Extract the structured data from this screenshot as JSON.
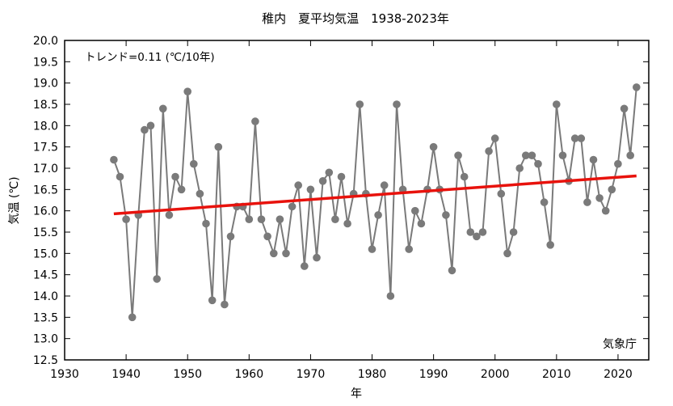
{
  "chart_data": {
    "type": "line",
    "title": "稚内　夏平均気温　1938-2023年",
    "xlabel": "年",
    "ylabel": "気温 (℃)",
    "trend_label": "トレンド=0.11 (℃/10年)",
    "credit": "気象庁",
    "xlim": [
      1930,
      2025
    ],
    "ylim": [
      12.5,
      20.0
    ],
    "grid": false,
    "xticks": [
      1930,
      1940,
      1950,
      1960,
      1970,
      1980,
      1990,
      2000,
      2010,
      2020
    ],
    "yticks": [
      "12.5",
      "13.0",
      "13.5",
      "14.0",
      "14.5",
      "15.0",
      "15.5",
      "16.0",
      "16.5",
      "17.0",
      "17.5",
      "18.0",
      "18.5",
      "19.0",
      "19.5",
      "20.0"
    ],
    "x": [
      1938,
      1939,
      1940,
      1941,
      1942,
      1943,
      1944,
      1945,
      1946,
      1947,
      1948,
      1949,
      1950,
      1951,
      1952,
      1953,
      1954,
      1955,
      1956,
      1957,
      1958,
      1959,
      1960,
      1961,
      1962,
      1963,
      1964,
      1965,
      1966,
      1967,
      1968,
      1969,
      1970,
      1971,
      1972,
      1973,
      1974,
      1975,
      1976,
      1977,
      1978,
      1979,
      1980,
      1981,
      1982,
      1983,
      1984,
      1985,
      1986,
      1987,
      1988,
      1989,
      1990,
      1991,
      1992,
      1993,
      1994,
      1995,
      1996,
      1997,
      1998,
      1999,
      2000,
      2001,
      2002,
      2003,
      2004,
      2005,
      2006,
      2007,
      2008,
      2009,
      2010,
      2011,
      2012,
      2013,
      2014,
      2015,
      2016,
      2017,
      2018,
      2019,
      2020,
      2021,
      2022,
      2023
    ],
    "series": [
      {
        "values": [
          17.2,
          16.8,
          15.8,
          13.5,
          15.9,
          17.9,
          18.0,
          14.4,
          18.4,
          15.9,
          16.8,
          16.5,
          18.8,
          17.1,
          16.4,
          15.7,
          13.9,
          17.5,
          13.8,
          15.4,
          16.1,
          16.1,
          15.8,
          18.1,
          15.8,
          15.4,
          15.0,
          15.8,
          15.0,
          16.1,
          16.6,
          14.7,
          16.5,
          14.9,
          16.7,
          16.9,
          15.8,
          16.8,
          15.7,
          16.4,
          18.5,
          16.4,
          15.1,
          15.9,
          16.6,
          14.0,
          18.5,
          16.5,
          15.1,
          16.0,
          15.7,
          16.5,
          17.5,
          16.5,
          15.9,
          14.6,
          17.3,
          16.8,
          15.5,
          15.4,
          15.5,
          17.4,
          17.7,
          16.4,
          15.0,
          15.5,
          17.0,
          17.3,
          17.3,
          17.1,
          16.2,
          15.2,
          18.5,
          17.3,
          16.7,
          17.7,
          17.7,
          16.2,
          17.2,
          16.3,
          16.0,
          16.5,
          17.1,
          18.4,
          17.3,
          18.9
        ],
        "color": "#7a7a7a"
      }
    ],
    "trend": {
      "x": [
        1938,
        2023
      ],
      "y": [
        15.93,
        16.82
      ],
      "color": "#e8120c"
    }
  }
}
